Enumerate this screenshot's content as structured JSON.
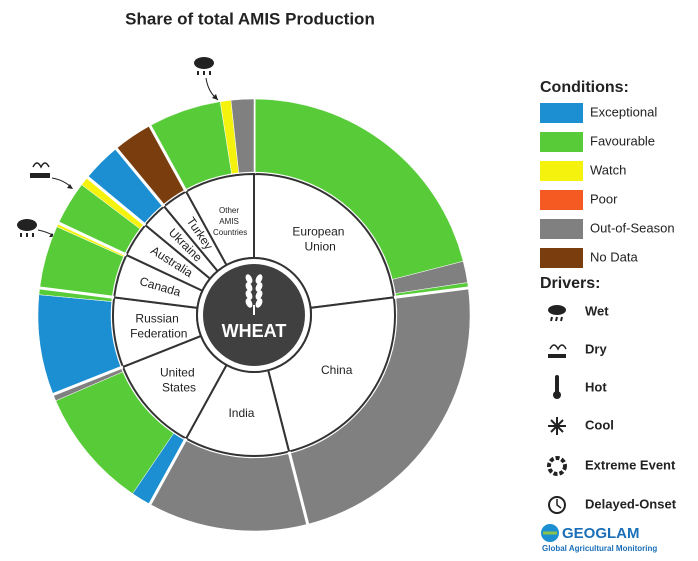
{
  "chart_data": {
    "type": "sunburst",
    "title": "Share of total AMIS Production",
    "center_label": "WHEAT",
    "legend_title": "Conditions:",
    "conditions": [
      {
        "name": "Exceptional",
        "color": "#1b8fd1"
      },
      {
        "name": "Favourable",
        "color": "#57cc38"
      },
      {
        "name": "Watch",
        "color": "#f5f20d"
      },
      {
        "name": "Poor",
        "color": "#f55a22"
      },
      {
        "name": "Out-of-Season",
        "color": "#808080"
      },
      {
        "name": "No Data",
        "color": "#7a3d0d"
      }
    ],
    "drivers_title": "Drivers:",
    "drivers": [
      "Wet",
      "Dry",
      "Hot",
      "Cool",
      "Extreme Event",
      "Delayed-Onset"
    ],
    "countries": [
      {
        "name": "European Union",
        "share": 23,
        "segments": [
          {
            "condition": 1,
            "value": 21
          },
          {
            "condition": 4,
            "value": 1.6
          },
          {
            "condition": 1,
            "value": 0.4
          }
        ]
      },
      {
        "name": "China",
        "share": 23,
        "segments": [
          {
            "condition": 4,
            "value": 23
          }
        ]
      },
      {
        "name": "India",
        "share": 12,
        "segments": [
          {
            "condition": 4,
            "value": 12
          }
        ]
      },
      {
        "name": "United States",
        "share": 11,
        "segments": [
          {
            "condition": 0,
            "value": 1.5
          },
          {
            "condition": 1,
            "value": 9
          },
          {
            "condition": 4,
            "value": 0.5
          }
        ]
      },
      {
        "name": "Russian Federation",
        "share": 8,
        "segments": [
          {
            "condition": 0,
            "value": 7.5
          },
          {
            "condition": 1,
            "value": 0.5
          }
        ]
      },
      {
        "name": "Canada",
        "share": 5,
        "segments": [
          {
            "condition": 1,
            "value": 4.7
          },
          {
            "condition": 2,
            "value": 0.3
          }
        ]
      },
      {
        "name": "Australia",
        "share": 4,
        "segments": [
          {
            "condition": 1,
            "value": 3.3
          },
          {
            "condition": 2,
            "value": 0.7
          }
        ]
      },
      {
        "name": "Ukraine",
        "share": 3,
        "segments": [
          {
            "condition": 0,
            "value": 3
          }
        ]
      },
      {
        "name": "Turkey",
        "share": 3,
        "segments": [
          {
            "condition": 5,
            "value": 3
          }
        ]
      },
      {
        "name": "Other AMIS Countries",
        "share": 8,
        "segments": [
          {
            "condition": 1,
            "value": 5.5
          },
          {
            "condition": 2,
            "value": 0.8
          },
          {
            "condition": 4,
            "value": 1.7
          }
        ]
      }
    ],
    "logo": "GEOGLAM",
    "logo_subtitle": "Global Agricultural Monitoring"
  }
}
